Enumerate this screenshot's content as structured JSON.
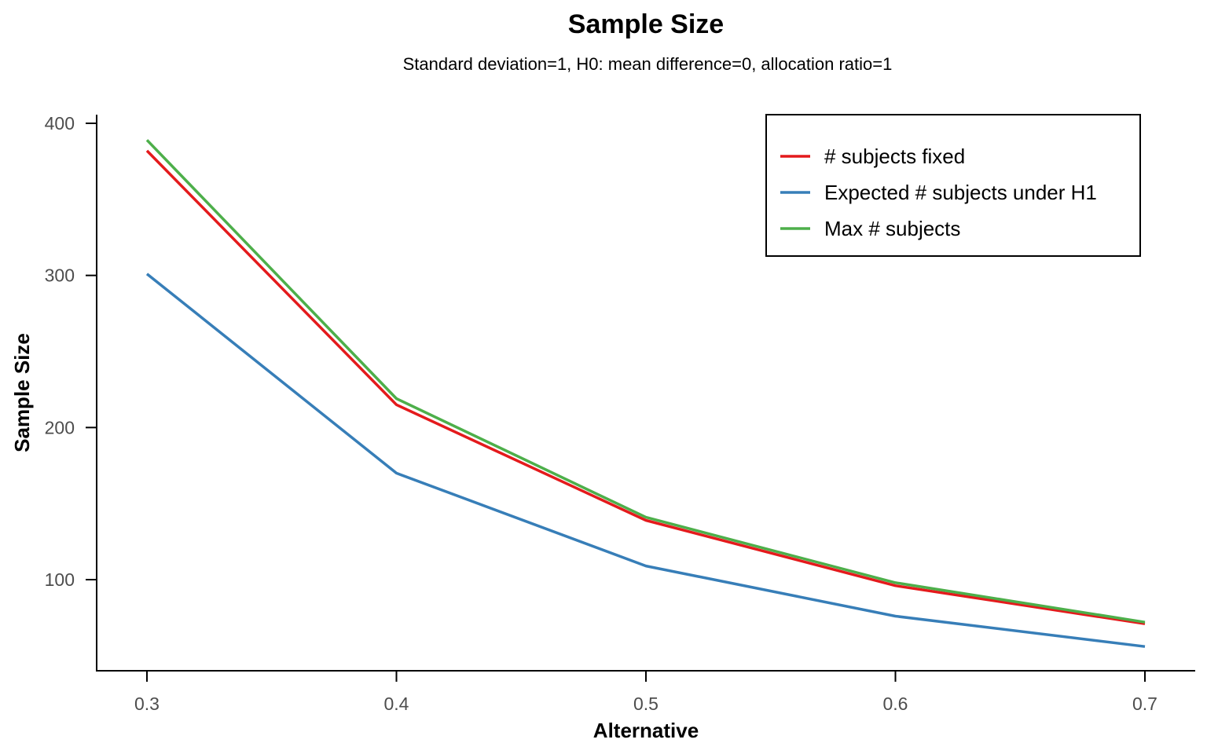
{
  "chart_data": {
    "type": "line",
    "title": "Sample Size",
    "subtitle": "Standard deviation=1, H0: mean difference=0, allocation ratio=1",
    "xlabel": "Alternative",
    "ylabel": "Sample Size",
    "x": [
      0.3,
      0.4,
      0.5,
      0.6,
      0.7
    ],
    "x_ticks": [
      "0.3",
      "0.4",
      "0.5",
      "0.6",
      "0.7"
    ],
    "y_ticks": [
      "100",
      "200",
      "300",
      "400"
    ],
    "xlim": [
      0.28,
      0.72
    ],
    "ylim": [
      40,
      404
    ],
    "grid": false,
    "legend_position": "top-right",
    "series": [
      {
        "name": "# subjects fixed",
        "color": "#e41a1c",
        "values": [
          382,
          215,
          139,
          96,
          71
        ]
      },
      {
        "name": "Expected # subjects under H1",
        "color": "#377eb8",
        "values": [
          301,
          170,
          109,
          76,
          56
        ]
      },
      {
        "name": "Max # subjects",
        "color": "#4daf4a",
        "values": [
          389,
          219,
          141,
          98,
          72
        ]
      }
    ]
  }
}
